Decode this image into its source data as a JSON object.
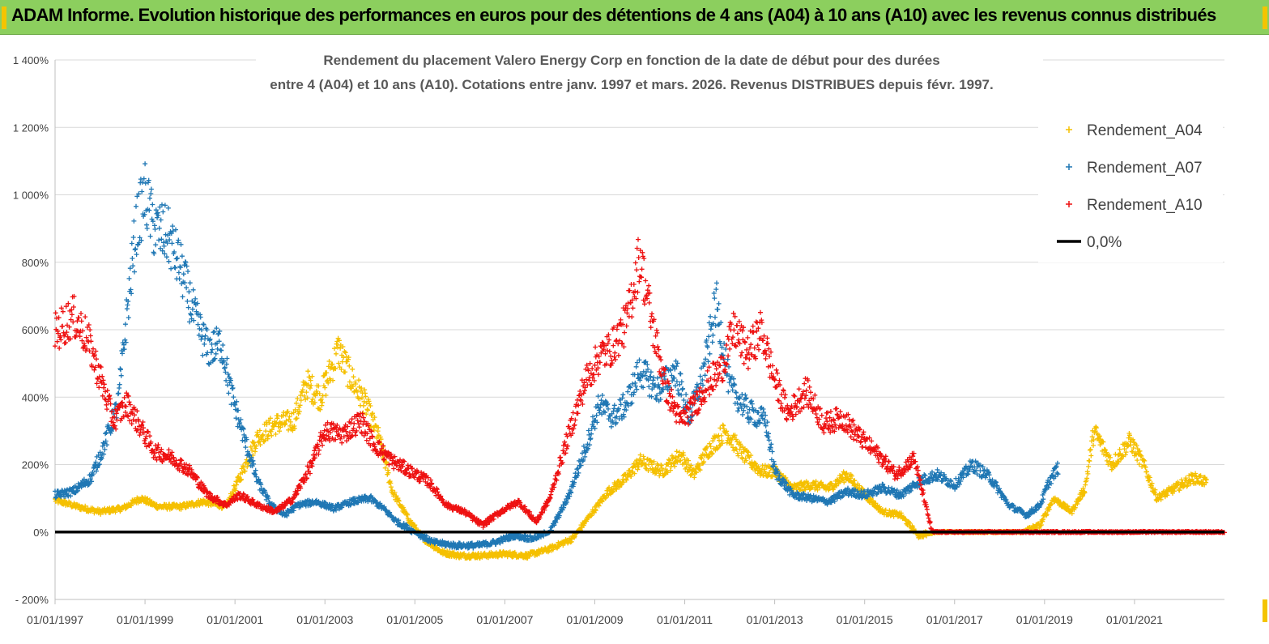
{
  "banner": {
    "title": "ADAM Informe. Evolution historique des performances en euros pour des détentions de 4 ans (A04) à 10 ans (A10) avec les revenus connus distribués",
    "background": "#8ccf5e"
  },
  "chart_data": {
    "type": "scatter",
    "title_line1": "Rendement du placement Valero Energy Corp en fonction de la date de début pour des durées",
    "title_line2": "entre 4 (A04) et 10 ans (A10). Cotations entre janv. 1997 et mars. 2026. Revenus DISTRIBUES depuis févr. 1997.",
    "x_range": [
      "1997-01-01",
      "2023-01-01"
    ],
    "ylim": [
      -200,
      1400
    ],
    "y_ticks": [
      -200,
      0,
      200,
      400,
      600,
      800,
      1000,
      1200,
      1400
    ],
    "y_tick_labels": [
      "- 200%",
      "0%",
      "200%",
      "400%",
      "600%",
      "800%",
      "1 000%",
      "1 200%",
      "1 400%"
    ],
    "x_tick_labels": [
      "01/01/1997",
      "01/01/1999",
      "01/01/2001",
      "01/01/2003",
      "01/01/2005",
      "01/01/2007",
      "01/01/2009",
      "01/01/2011",
      "01/01/2013",
      "01/01/2015",
      "01/01/2017",
      "01/01/2019",
      "01/01/2021"
    ],
    "grid": "horizontal",
    "legend_position": "top-right",
    "series": [
      {
        "name": "Rendement_A04",
        "color": "#f5c000",
        "marker": "+",
        "points": [
          [
            1997.0,
            95
          ],
          [
            1997.5,
            75
          ],
          [
            1998.0,
            60
          ],
          [
            1998.5,
            70
          ],
          [
            1998.9,
            100
          ],
          [
            1999.3,
            75
          ],
          [
            1999.8,
            75
          ],
          [
            2000.3,
            90
          ],
          [
            2000.8,
            75
          ],
          [
            2001.1,
            160
          ],
          [
            2001.5,
            280
          ],
          [
            2001.9,
            320
          ],
          [
            2002.3,
            330
          ],
          [
            2002.6,
            440
          ],
          [
            2002.9,
            400
          ],
          [
            2003.3,
            540
          ],
          [
            2003.6,
            450
          ],
          [
            2003.9,
            380
          ],
          [
            2004.2,
            280
          ],
          [
            2004.5,
            120
          ],
          [
            2004.9,
            30
          ],
          [
            2005.2,
            -20
          ],
          [
            2005.6,
            -60
          ],
          [
            2006.0,
            -70
          ],
          [
            2006.5,
            -70
          ],
          [
            2007.0,
            -65
          ],
          [
            2007.5,
            -70
          ],
          [
            2008.0,
            -50
          ],
          [
            2008.5,
            -20
          ],
          [
            2008.9,
            50
          ],
          [
            2009.3,
            120
          ],
          [
            2009.7,
            160
          ],
          [
            2010.0,
            210
          ],
          [
            2010.5,
            180
          ],
          [
            2010.9,
            230
          ],
          [
            2011.2,
            170
          ],
          [
            2011.5,
            240
          ],
          [
            2011.9,
            300
          ],
          [
            2012.3,
            230
          ],
          [
            2012.7,
            180
          ],
          [
            2013.0,
            180
          ],
          [
            2013.4,
            130
          ],
          [
            2013.8,
            140
          ],
          [
            2014.2,
            130
          ],
          [
            2014.6,
            170
          ],
          [
            2015.0,
            110
          ],
          [
            2015.4,
            60
          ],
          [
            2015.8,
            50
          ],
          [
            2016.2,
            -10
          ],
          [
            2016.6,
            0
          ],
          [
            2017.0,
            0
          ],
          [
            2017.5,
            0
          ],
          [
            2018.0,
            0
          ],
          [
            2018.5,
            0
          ],
          [
            2018.9,
            20
          ],
          [
            2019.2,
            100
          ],
          [
            2019.6,
            60
          ],
          [
            2019.9,
            130
          ],
          [
            2020.1,
            300
          ],
          [
            2020.5,
            200
          ],
          [
            2020.9,
            270
          ],
          [
            2021.2,
            200
          ],
          [
            2021.5,
            100
          ],
          [
            2021.9,
            130
          ],
          [
            2022.3,
            160
          ],
          [
            2022.6,
            150
          ]
        ]
      },
      {
        "name": "Rendement_A07",
        "color": "#1f77b4",
        "marker": "+",
        "points": [
          [
            1997.0,
            110
          ],
          [
            1997.4,
            120
          ],
          [
            1997.8,
            160
          ],
          [
            1998.1,
            260
          ],
          [
            1998.4,
            380
          ],
          [
            1998.6,
            650
          ],
          [
            1998.8,
            900
          ],
          [
            1999.0,
            1000
          ],
          [
            1999.2,
            900
          ],
          [
            1999.5,
            880
          ],
          [
            1999.8,
            780
          ],
          [
            2000.1,
            640
          ],
          [
            2000.4,
            540
          ],
          [
            2000.7,
            560
          ],
          [
            2000.9,
            420
          ],
          [
            2001.2,
            280
          ],
          [
            2001.5,
            150
          ],
          [
            2001.8,
            80
          ],
          [
            2002.1,
            50
          ],
          [
            2002.4,
            80
          ],
          [
            2002.8,
            90
          ],
          [
            2003.2,
            70
          ],
          [
            2003.6,
            90
          ],
          [
            2004.0,
            100
          ],
          [
            2004.3,
            70
          ],
          [
            2004.6,
            30
          ],
          [
            2005.0,
            0
          ],
          [
            2005.4,
            -30
          ],
          [
            2005.9,
            -40
          ],
          [
            2006.4,
            -40
          ],
          [
            2006.8,
            -30
          ],
          [
            2007.2,
            -10
          ],
          [
            2007.6,
            -20
          ],
          [
            2008.0,
            0
          ],
          [
            2008.4,
            100
          ],
          [
            2008.8,
            250
          ],
          [
            2009.1,
            380
          ],
          [
            2009.4,
            340
          ],
          [
            2009.7,
            380
          ],
          [
            2010.0,
            480
          ],
          [
            2010.4,
            420
          ],
          [
            2010.8,
            480
          ],
          [
            2011.1,
            340
          ],
          [
            2011.4,
            460
          ],
          [
            2011.7,
            680
          ],
          [
            2012.0,
            430
          ],
          [
            2012.4,
            360
          ],
          [
            2012.8,
            330
          ],
          [
            2013.0,
            180
          ],
          [
            2013.4,
            110
          ],
          [
            2013.8,
            100
          ],
          [
            2014.2,
            90
          ],
          [
            2014.6,
            120
          ],
          [
            2015.0,
            110
          ],
          [
            2015.4,
            130
          ],
          [
            2015.8,
            110
          ],
          [
            2016.2,
            150
          ],
          [
            2016.6,
            170
          ],
          [
            2017.0,
            140
          ],
          [
            2017.4,
            200
          ],
          [
            2017.8,
            160
          ],
          [
            2018.2,
            80
          ],
          [
            2018.6,
            50
          ],
          [
            2018.9,
            80
          ],
          [
            2019.1,
            150
          ],
          [
            2019.3,
            190
          ]
        ]
      },
      {
        "name": "Rendement_A10",
        "color": "#ee1111",
        "marker": "+",
        "points": [
          [
            1997.0,
            590
          ],
          [
            1997.4,
            640
          ],
          [
            1997.7,
            580
          ],
          [
            1998.0,
            460
          ],
          [
            1998.3,
            330
          ],
          [
            1998.6,
            380
          ],
          [
            1998.9,
            310
          ],
          [
            1999.2,
            240
          ],
          [
            1999.6,
            220
          ],
          [
            2000.0,
            180
          ],
          [
            2000.4,
            110
          ],
          [
            2000.8,
            80
          ],
          [
            2001.1,
            110
          ],
          [
            2001.5,
            80
          ],
          [
            2001.9,
            60
          ],
          [
            2002.3,
            100
          ],
          [
            2002.7,
            200
          ],
          [
            2003.0,
            300
          ],
          [
            2003.4,
            290
          ],
          [
            2003.8,
            330
          ],
          [
            2004.1,
            260
          ],
          [
            2004.5,
            210
          ],
          [
            2004.9,
            180
          ],
          [
            2005.3,
            150
          ],
          [
            2005.7,
            80
          ],
          [
            2006.1,
            60
          ],
          [
            2006.5,
            20
          ],
          [
            2006.9,
            60
          ],
          [
            2007.3,
            90
          ],
          [
            2007.7,
            30
          ],
          [
            2008.0,
            100
          ],
          [
            2008.4,
            280
          ],
          [
            2008.8,
            450
          ],
          [
            2009.1,
            520
          ],
          [
            2009.4,
            550
          ],
          [
            2009.7,
            620
          ],
          [
            2010.0,
            820
          ],
          [
            2010.3,
            600
          ],
          [
            2010.6,
            420
          ],
          [
            2010.9,
            330
          ],
          [
            2011.2,
            370
          ],
          [
            2011.5,
            440
          ],
          [
            2011.8,
            480
          ],
          [
            2012.1,
            600
          ],
          [
            2012.4,
            530
          ],
          [
            2012.7,
            600
          ],
          [
            2013.0,
            450
          ],
          [
            2013.3,
            350
          ],
          [
            2013.7,
            420
          ],
          [
            2014.1,
            320
          ],
          [
            2014.5,
            340
          ],
          [
            2014.9,
            280
          ],
          [
            2015.3,
            230
          ],
          [
            2015.7,
            170
          ],
          [
            2016.1,
            220
          ],
          [
            2016.5,
            0
          ],
          [
            2017.0,
            0
          ],
          [
            2017.5,
            0
          ],
          [
            2018.0,
            0
          ],
          [
            2018.5,
            0
          ],
          [
            2019.0,
            0
          ],
          [
            2019.5,
            0
          ],
          [
            2020.0,
            0
          ],
          [
            2020.5,
            0
          ],
          [
            2021.0,
            0
          ],
          [
            2021.5,
            0
          ],
          [
            2022.0,
            0
          ],
          [
            2022.5,
            0
          ],
          [
            2023.0,
            0
          ]
        ]
      },
      {
        "name": "0,0%",
        "color": "#000000",
        "marker": "line",
        "points": [
          [
            1997.0,
            0
          ],
          [
            2023.0,
            0
          ]
        ]
      }
    ]
  }
}
